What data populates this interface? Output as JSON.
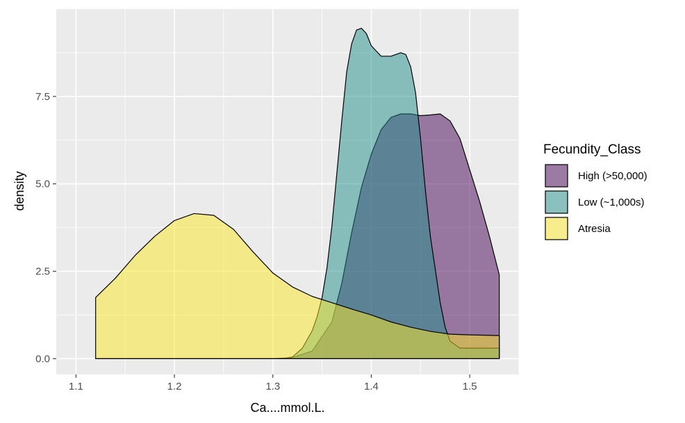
{
  "chart_data": {
    "type": "area",
    "chart_subtype": "density",
    "xlabel": "Ca....mmol.L.",
    "ylabel": "density",
    "xlim": [
      1.08,
      1.55
    ],
    "ylim": [
      -0.45,
      10.0
    ],
    "x_ticks": [
      1.1,
      1.2,
      1.3,
      1.4,
      1.5
    ],
    "x_tick_labels": [
      "1.1",
      "1.2",
      "1.3",
      "1.4",
      "1.5"
    ],
    "y_ticks": [
      0.0,
      2.5,
      5.0,
      7.5
    ],
    "y_tick_labels": [
      "0.0",
      "2.5",
      "5.0",
      "7.5"
    ],
    "grid": true,
    "legend_position": "right",
    "legend_title": "Fecundity_Class",
    "series": [
      {
        "name": "High (>50,000)",
        "color": "#440154",
        "opacity": 0.5,
        "x": [
          1.12,
          1.3,
          1.32,
          1.34,
          1.36,
          1.37,
          1.38,
          1.39,
          1.4,
          1.41,
          1.42,
          1.43,
          1.44,
          1.45,
          1.46,
          1.47,
          1.48,
          1.49,
          1.5,
          1.51,
          1.52,
          1.53
        ],
        "y": [
          0.0,
          0.0,
          0.03,
          0.22,
          1.05,
          2.15,
          3.6,
          4.9,
          5.85,
          6.55,
          6.9,
          7.0,
          7.0,
          6.95,
          6.97,
          7.0,
          6.8,
          6.3,
          5.4,
          4.5,
          3.5,
          2.4
        ]
      },
      {
        "name": "Low (~1,000s)",
        "color": "#21908c",
        "opacity": 0.5,
        "x": [
          1.12,
          1.31,
          1.32,
          1.33,
          1.34,
          1.345,
          1.35,
          1.355,
          1.36,
          1.365,
          1.37,
          1.375,
          1.38,
          1.385,
          1.39,
          1.395,
          1.4,
          1.41,
          1.42,
          1.43,
          1.435,
          1.44,
          1.445,
          1.45,
          1.455,
          1.46,
          1.47,
          1.475,
          1.48,
          1.49,
          1.5,
          1.51,
          1.53
        ],
        "y": [
          0.0,
          0.0,
          0.05,
          0.3,
          0.8,
          1.2,
          1.75,
          2.6,
          3.8,
          5.3,
          6.8,
          8.2,
          9.0,
          9.4,
          9.45,
          9.3,
          8.95,
          8.65,
          8.65,
          8.75,
          8.7,
          8.35,
          7.6,
          6.3,
          4.8,
          3.5,
          1.6,
          0.9,
          0.5,
          0.3,
          0.3,
          0.3,
          0.3
        ]
      },
      {
        "name": "Atresia",
        "color": "#fde725",
        "opacity": 0.5,
        "x": [
          1.12,
          1.14,
          1.16,
          1.18,
          1.2,
          1.22,
          1.24,
          1.26,
          1.28,
          1.3,
          1.32,
          1.34,
          1.36,
          1.38,
          1.4,
          1.42,
          1.44,
          1.46,
          1.48,
          1.5,
          1.53
        ],
        "y": [
          1.75,
          2.3,
          2.95,
          3.5,
          3.95,
          4.15,
          4.1,
          3.7,
          3.05,
          2.45,
          2.05,
          1.78,
          1.6,
          1.42,
          1.25,
          1.05,
          0.9,
          0.78,
          0.7,
          0.68,
          0.66
        ]
      }
    ]
  }
}
